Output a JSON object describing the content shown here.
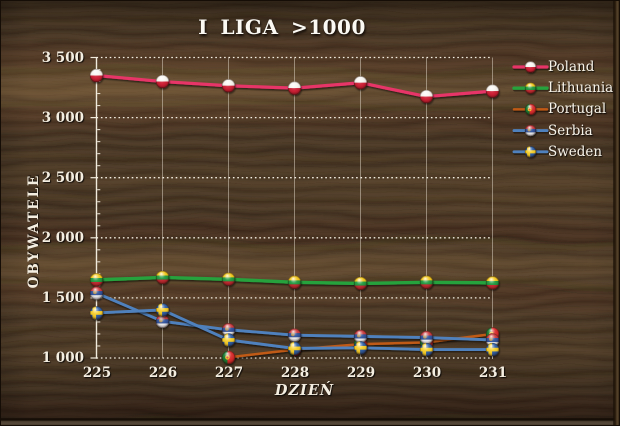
{
  "title": "I LIGA >1000",
  "chart_data": {
    "type": "line",
    "title": "I LIGA >1000",
    "xlabel": "DZIEŃ",
    "ylabel": "OBYWATELE",
    "x": [
      225,
      226,
      227,
      228,
      229,
      230,
      231
    ],
    "x_tick_labels": [
      "225",
      "226",
      "227",
      "228",
      "229",
      "230",
      "231"
    ],
    "xlim": [
      225,
      231
    ],
    "ylim": [
      1000,
      3500
    ],
    "y_ticks": [
      1000,
      1500,
      2000,
      2500,
      3000,
      3500
    ],
    "y_tick_labels": [
      "1 000",
      "1 500",
      "2 000",
      "2 500",
      "3 000",
      "3 500"
    ],
    "y_minor_tick_step": 100,
    "grid": true,
    "legend_position": "right",
    "background": "dark wood texture",
    "series": [
      {
        "name": "Poland",
        "color": "#e73467",
        "marker": "poland-flag-ball",
        "values": [
          3350,
          3300,
          3265,
          3245,
          3290,
          3175,
          3220
        ]
      },
      {
        "name": "Lithuania",
        "color": "#27a23d",
        "marker": "lithuania-flag-ball",
        "values": [
          1650,
          1670,
          1655,
          1630,
          1620,
          1630,
          1625
        ]
      },
      {
        "name": "Portugal",
        "color": "#c05a15",
        "marker": "portugal-flag-ball",
        "values": [
          null,
          null,
          1005,
          1070,
          1115,
          1130,
          1200
        ]
      },
      {
        "name": "Serbia",
        "color": "#4f81bd",
        "marker": "serbia-flag-ball",
        "values": [
          1540,
          1305,
          1235,
          1190,
          1180,
          1170,
          1150
        ]
      },
      {
        "name": "Sweden",
        "color": "#4f81bd",
        "marker": "sweden-flag-ball",
        "values": [
          1375,
          1400,
          1150,
          1080,
          1085,
          1070,
          1070
        ]
      }
    ]
  },
  "colors": {
    "axis": "#f1ebdd",
    "gridline_vertical": "rgba(232,224,208,0.48)",
    "gridline_dotted": "#f6f1e4",
    "text": "#f4eee1"
  }
}
